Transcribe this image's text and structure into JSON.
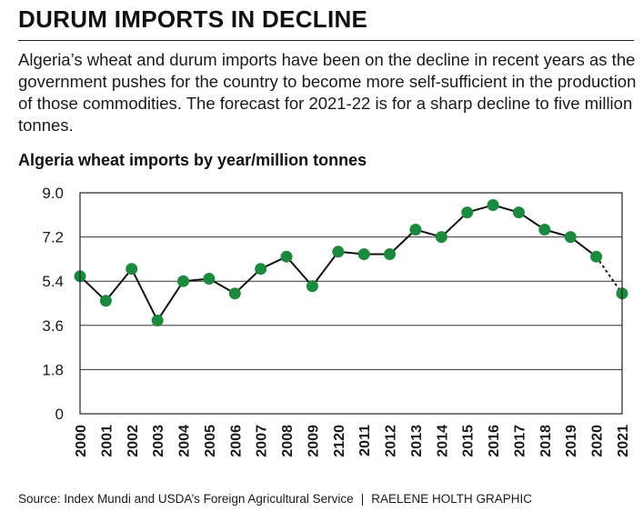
{
  "header": {
    "headline": "DURUM IMPORTS IN DECLINE",
    "deck": "Algeria’s wheat and durum imports have been on the decline in recent years as the government pushes for the country to become more self-sufficient in the production of those commodities. The forecast for 2021-22 is for a sharp decline to five million tonnes."
  },
  "footer": {
    "source": "Source: Index Mundi and USDA’s Foreign Agricultural Service",
    "separator": "|",
    "credit": "RAELENE HOLTH GRAPHIC"
  },
  "chart_data": {
    "type": "line",
    "title": "Algeria wheat imports by year/million tonnes",
    "xlabel": "",
    "ylabel": "",
    "categories": [
      "2000",
      "2001",
      "2002",
      "2003",
      "2004",
      "2005",
      "2006",
      "2007",
      "2008",
      "2009",
      "2120",
      "2011",
      "2012",
      "2013",
      "2014",
      "2015",
      "2016",
      "2017",
      "2018",
      "2019",
      "2020",
      "2021"
    ],
    "values": [
      5.6,
      4.6,
      5.9,
      3.8,
      5.4,
      5.5,
      4.9,
      5.9,
      6.4,
      5.2,
      6.6,
      6.5,
      6.5,
      7.5,
      7.2,
      8.2,
      8.5,
      8.2,
      7.5,
      7.2,
      6.4,
      4.9
    ],
    "forecast_from_index": 20,
    "yticks": [
      "0",
      "1.8",
      "3.6",
      "5.4",
      "7.2",
      "9.0"
    ],
    "ylim": [
      0,
      9.0
    ],
    "grid": "horizontal",
    "colors": {
      "marker": "#1a8a3c",
      "line": "#111111",
      "grid": "#333333"
    }
  }
}
